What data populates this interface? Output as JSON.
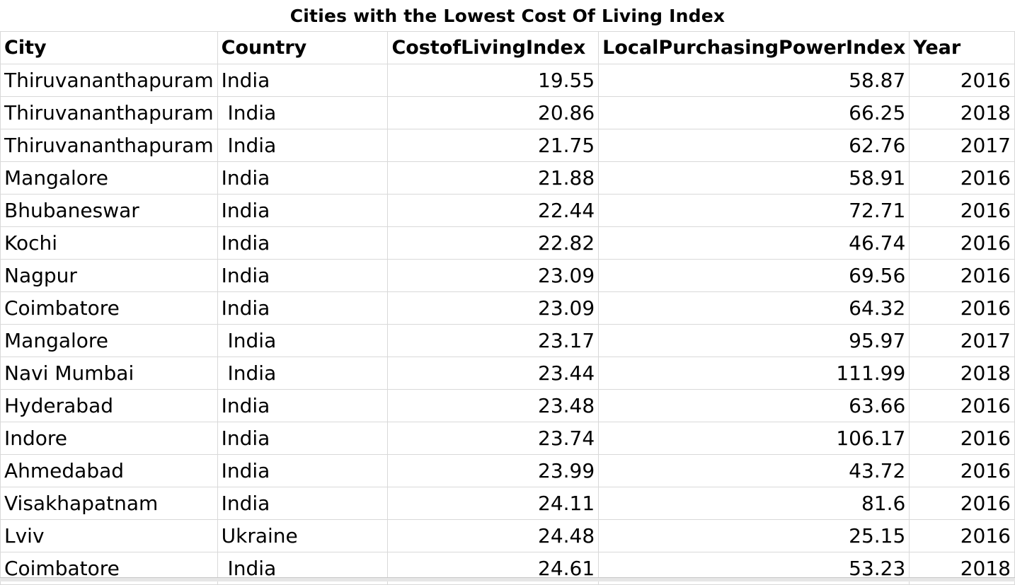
{
  "title": "Cities with the Lowest Cost Of Living  Index",
  "headers": [
    "City",
    "Country",
    "CostofLivingIndex",
    "LocalPurchasingPowerIndex",
    "Year"
  ],
  "rows": [
    [
      "Thiruvananthapuram",
      "India",
      "19.55",
      "58.87",
      "2016"
    ],
    [
      "Thiruvananthapuram",
      " India",
      "20.86",
      "66.25",
      "2018"
    ],
    [
      "Thiruvananthapuram",
      " India",
      "21.75",
      "62.76",
      "2017"
    ],
    [
      "Mangalore",
      "India",
      "21.88",
      "58.91",
      "2016"
    ],
    [
      "Bhubaneswar",
      "India",
      "22.44",
      "72.71",
      "2016"
    ],
    [
      "Kochi",
      "India",
      "22.82",
      "46.74",
      "2016"
    ],
    [
      "Nagpur",
      "India",
      "23.09",
      "69.56",
      "2016"
    ],
    [
      "Coimbatore",
      "India",
      "23.09",
      "64.32",
      "2016"
    ],
    [
      "Mangalore",
      " India",
      "23.17",
      "95.97",
      "2017"
    ],
    [
      "Navi Mumbai",
      " India",
      "23.44",
      "111.99",
      "2018"
    ],
    [
      "Hyderabad",
      "India",
      "23.48",
      "63.66",
      "2016"
    ],
    [
      "Indore",
      "India",
      "23.74",
      "106.17",
      "2016"
    ],
    [
      "Ahmedabad",
      "India",
      "23.99",
      "43.72",
      "2016"
    ],
    [
      "Visakhapatnam",
      "India",
      "24.11",
      "81.6",
      "2016"
    ],
    [
      "Lviv",
      "Ukraine",
      "24.48",
      "25.15",
      "2016"
    ],
    [
      "Coimbatore",
      " India",
      "24.61",
      "53.23",
      "2018"
    ]
  ]
}
